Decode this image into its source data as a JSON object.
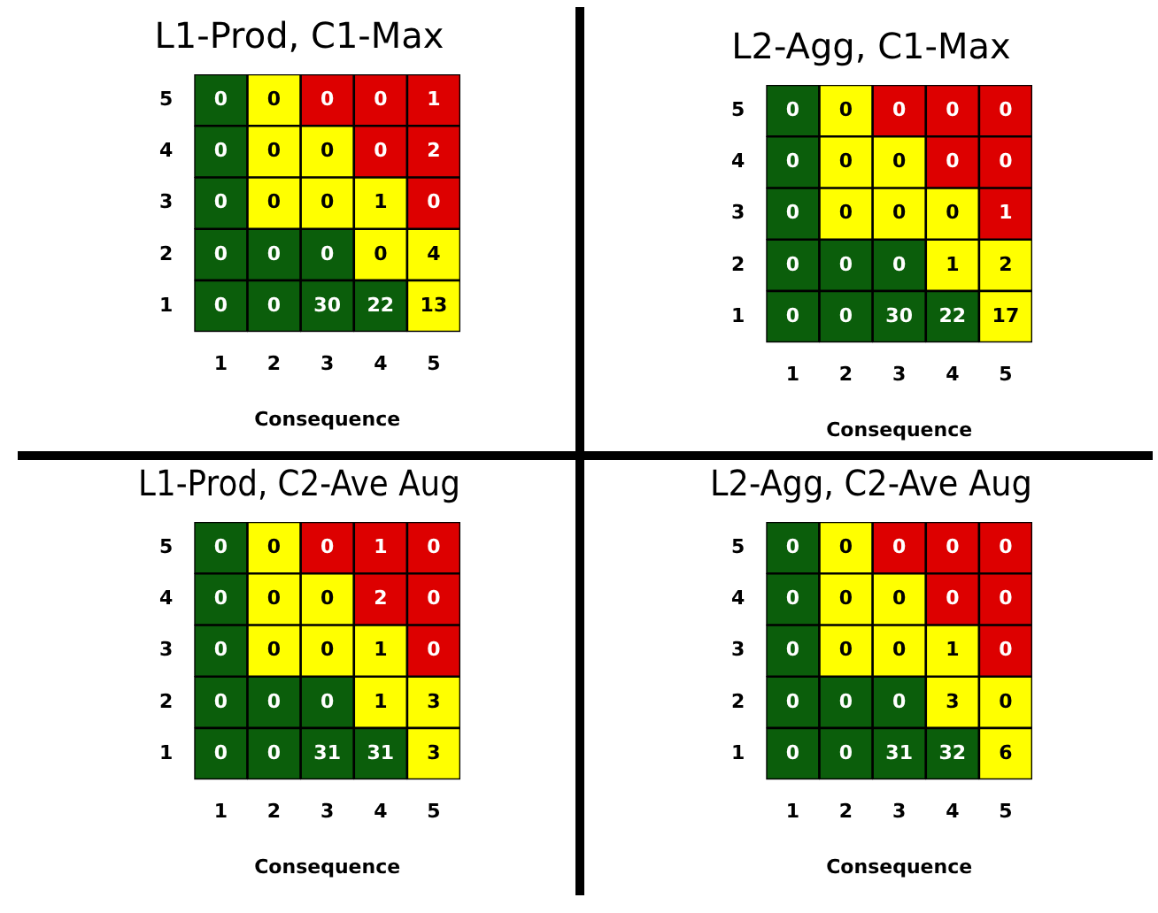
{
  "chart_data": [
    {
      "type": "heatmap",
      "title": "L1-Prod, C1-Max",
      "xlabel": "Consequence",
      "categories": [
        "1",
        "2",
        "3",
        "4",
        "5"
      ],
      "y_categories": [
        "5",
        "4",
        "3",
        "2",
        "1"
      ],
      "data_labels": true,
      "cells": [
        [
          0,
          0,
          0,
          0,
          1
        ],
        [
          0,
          0,
          0,
          0,
          2
        ],
        [
          0,
          0,
          0,
          1,
          0
        ],
        [
          0,
          0,
          0,
          0,
          4
        ],
        [
          0,
          0,
          30,
          22,
          13
        ]
      ],
      "colors": [
        [
          "#0b5e0b",
          "#ffff00",
          "#dd0000",
          "#dd0000",
          "#dd0000"
        ],
        [
          "#0b5e0b",
          "#ffff00",
          "#ffff00",
          "#dd0000",
          "#dd0000"
        ],
        [
          "#0b5e0b",
          "#ffff00",
          "#ffff00",
          "#ffff00",
          "#dd0000"
        ],
        [
          "#0b5e0b",
          "#0b5e0b",
          "#0b5e0b",
          "#ffff00",
          "#ffff00"
        ],
        [
          "#0b5e0b",
          "#0b5e0b",
          "#0b5e0b",
          "#0b5e0b",
          "#ffff00"
        ]
      ]
    },
    {
      "type": "heatmap",
      "title": "L2-Agg, C1-Max",
      "xlabel": "Consequence",
      "categories": [
        "1",
        "2",
        "3",
        "4",
        "5"
      ],
      "y_categories": [
        "5",
        "4",
        "3",
        "2",
        "1"
      ],
      "data_labels": true,
      "cells": [
        [
          0,
          0,
          0,
          0,
          0
        ],
        [
          0,
          0,
          0,
          0,
          0
        ],
        [
          0,
          0,
          0,
          0,
          1
        ],
        [
          0,
          0,
          0,
          1,
          2
        ],
        [
          0,
          0,
          30,
          22,
          17
        ]
      ],
      "colors": [
        [
          "#0b5e0b",
          "#ffff00",
          "#dd0000",
          "#dd0000",
          "#dd0000"
        ],
        [
          "#0b5e0b",
          "#ffff00",
          "#ffff00",
          "#dd0000",
          "#dd0000"
        ],
        [
          "#0b5e0b",
          "#ffff00",
          "#ffff00",
          "#ffff00",
          "#dd0000"
        ],
        [
          "#0b5e0b",
          "#0b5e0b",
          "#0b5e0b",
          "#ffff00",
          "#ffff00"
        ],
        [
          "#0b5e0b",
          "#0b5e0b",
          "#0b5e0b",
          "#0b5e0b",
          "#ffff00"
        ]
      ]
    },
    {
      "type": "heatmap",
      "title": "L1-Prod, C2-Ave Aug",
      "xlabel": "Consequence",
      "categories": [
        "1",
        "2",
        "3",
        "4",
        "5"
      ],
      "y_categories": [
        "5",
        "4",
        "3",
        "2",
        "1"
      ],
      "data_labels": true,
      "cells": [
        [
          0,
          0,
          0,
          1,
          0
        ],
        [
          0,
          0,
          0,
          2,
          0
        ],
        [
          0,
          0,
          0,
          1,
          0
        ],
        [
          0,
          0,
          0,
          1,
          3
        ],
        [
          0,
          0,
          31,
          31,
          3
        ]
      ],
      "colors": [
        [
          "#0b5e0b",
          "#ffff00",
          "#dd0000",
          "#dd0000",
          "#dd0000"
        ],
        [
          "#0b5e0b",
          "#ffff00",
          "#ffff00",
          "#dd0000",
          "#dd0000"
        ],
        [
          "#0b5e0b",
          "#ffff00",
          "#ffff00",
          "#ffff00",
          "#dd0000"
        ],
        [
          "#0b5e0b",
          "#0b5e0b",
          "#0b5e0b",
          "#ffff00",
          "#ffff00"
        ],
        [
          "#0b5e0b",
          "#0b5e0b",
          "#0b5e0b",
          "#0b5e0b",
          "#ffff00"
        ]
      ]
    },
    {
      "type": "heatmap",
      "title": "L2-Agg, C2-Ave Aug",
      "xlabel": "Consequence",
      "categories": [
        "1",
        "2",
        "3",
        "4",
        "5"
      ],
      "y_categories": [
        "5",
        "4",
        "3",
        "2",
        "1"
      ],
      "data_labels": true,
      "cells": [
        [
          0,
          0,
          0,
          0,
          0
        ],
        [
          0,
          0,
          0,
          0,
          0
        ],
        [
          0,
          0,
          0,
          1,
          0
        ],
        [
          0,
          0,
          0,
          3,
          0
        ],
        [
          0,
          0,
          31,
          32,
          6
        ]
      ],
      "colors": [
        [
          "#0b5e0b",
          "#ffff00",
          "#dd0000",
          "#dd0000",
          "#dd0000"
        ],
        [
          "#0b5e0b",
          "#ffff00",
          "#ffff00",
          "#dd0000",
          "#dd0000"
        ],
        [
          "#0b5e0b",
          "#ffff00",
          "#ffff00",
          "#ffff00",
          "#dd0000"
        ],
        [
          "#0b5e0b",
          "#0b5e0b",
          "#0b5e0b",
          "#ffff00",
          "#ffff00"
        ],
        [
          "#0b5e0b",
          "#0b5e0b",
          "#0b5e0b",
          "#0b5e0b",
          "#ffff00"
        ]
      ]
    }
  ]
}
